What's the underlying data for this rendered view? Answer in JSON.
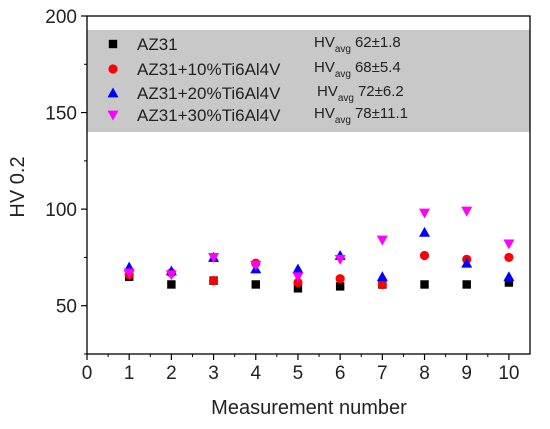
{
  "chart_data": {
    "type": "scatter",
    "xlabel": "Measurement number",
    "ylabel": "HV 0.2",
    "xlim": [
      0,
      10.5
    ],
    "ylim": [
      25,
      200
    ],
    "xticks": [
      0,
      1,
      2,
      3,
      4,
      5,
      6,
      7,
      8,
      9,
      10
    ],
    "yticks": [
      50,
      100,
      150,
      200
    ],
    "x": [
      1,
      2,
      3,
      4,
      5,
      6,
      7,
      8,
      9,
      10
    ],
    "grid": false,
    "legend_placement": "top-left",
    "legend_background": "#c8c8c8",
    "series": [
      {
        "name": "AZ31",
        "marker": "square",
        "color": "#000000",
        "values": [
          65,
          61,
          63,
          61,
          59,
          60,
          61,
          61,
          61,
          62
        ],
        "avg_label": "HV",
        "avg_sub": "avg",
        "avg_value": "62±1.8"
      },
      {
        "name": "AZ31+10%Ti6Al4V",
        "marker": "circle",
        "color": "#ff0000",
        "values": [
          66,
          67,
          63,
          72,
          62,
          64,
          61,
          76,
          74,
          75
        ],
        "avg_label": "HV",
        "avg_sub": "avg",
        "avg_value": "68±5.4"
      },
      {
        "name": "AZ31+20%Ti6Al4V",
        "marker": "triangle-up",
        "color": "#0000ff",
        "values": [
          70,
          68,
          75,
          69,
          69,
          76,
          65,
          88,
          72,
          65
        ],
        "avg_label": "HV",
        "avg_sub": "avg",
        "avg_value": "72±6.2"
      },
      {
        "name": "AZ31+30%Ti6Al4V",
        "marker": "triangle-down",
        "color": "#ff00ff",
        "values": [
          67,
          66,
          75,
          71,
          65,
          74,
          84,
          98,
          99,
          82
        ],
        "avg_label": "HV",
        "avg_sub": "avg",
        "avg_value": "78±11.1"
      }
    ]
  }
}
